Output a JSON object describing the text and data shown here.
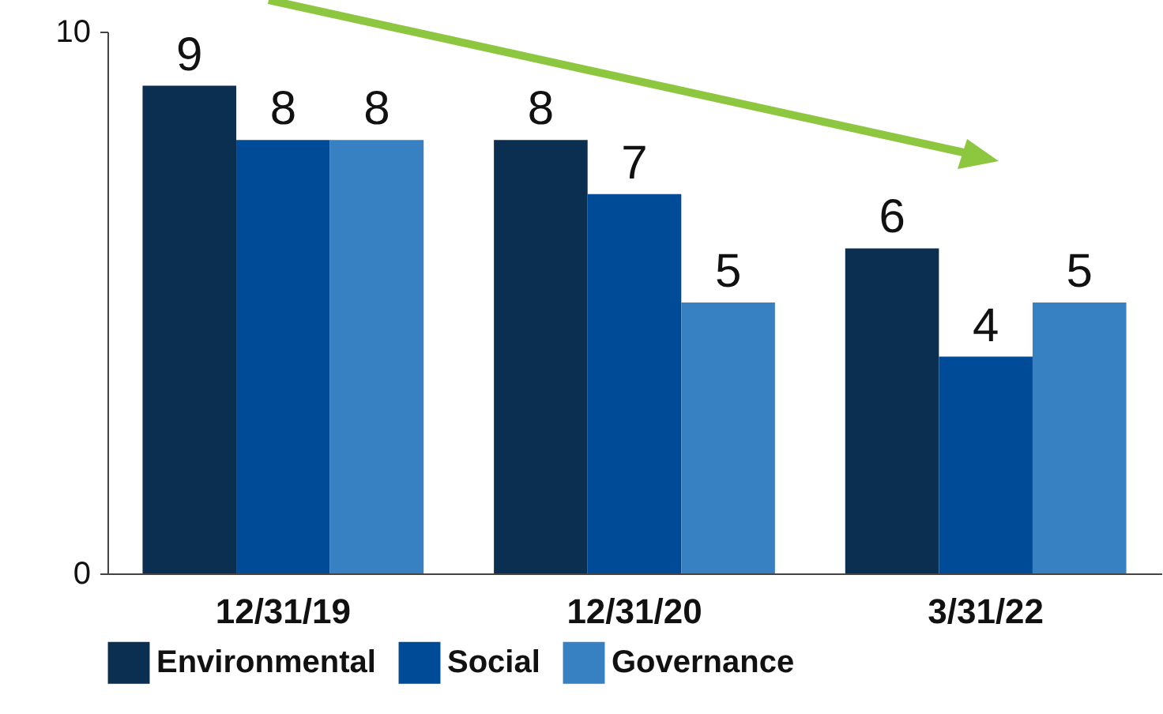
{
  "chart_data": {
    "type": "bar",
    "categories": [
      "12/31/19",
      "12/31/20",
      "3/31/22"
    ],
    "series": [
      {
        "name": "Environmental",
        "color": "#0b2f50",
        "values": [
          9,
          8,
          6
        ]
      },
      {
        "name": "Social",
        "color": "#004b97",
        "values": [
          8,
          7,
          4
        ]
      },
      {
        "name": "Governance",
        "color": "#3780c2",
        "values": [
          8,
          5,
          5
        ]
      }
    ],
    "ylim": [
      0,
      10
    ],
    "yticks": [
      0,
      10
    ],
    "grid": false,
    "legend": "bottom",
    "data_labels": true
  }
}
